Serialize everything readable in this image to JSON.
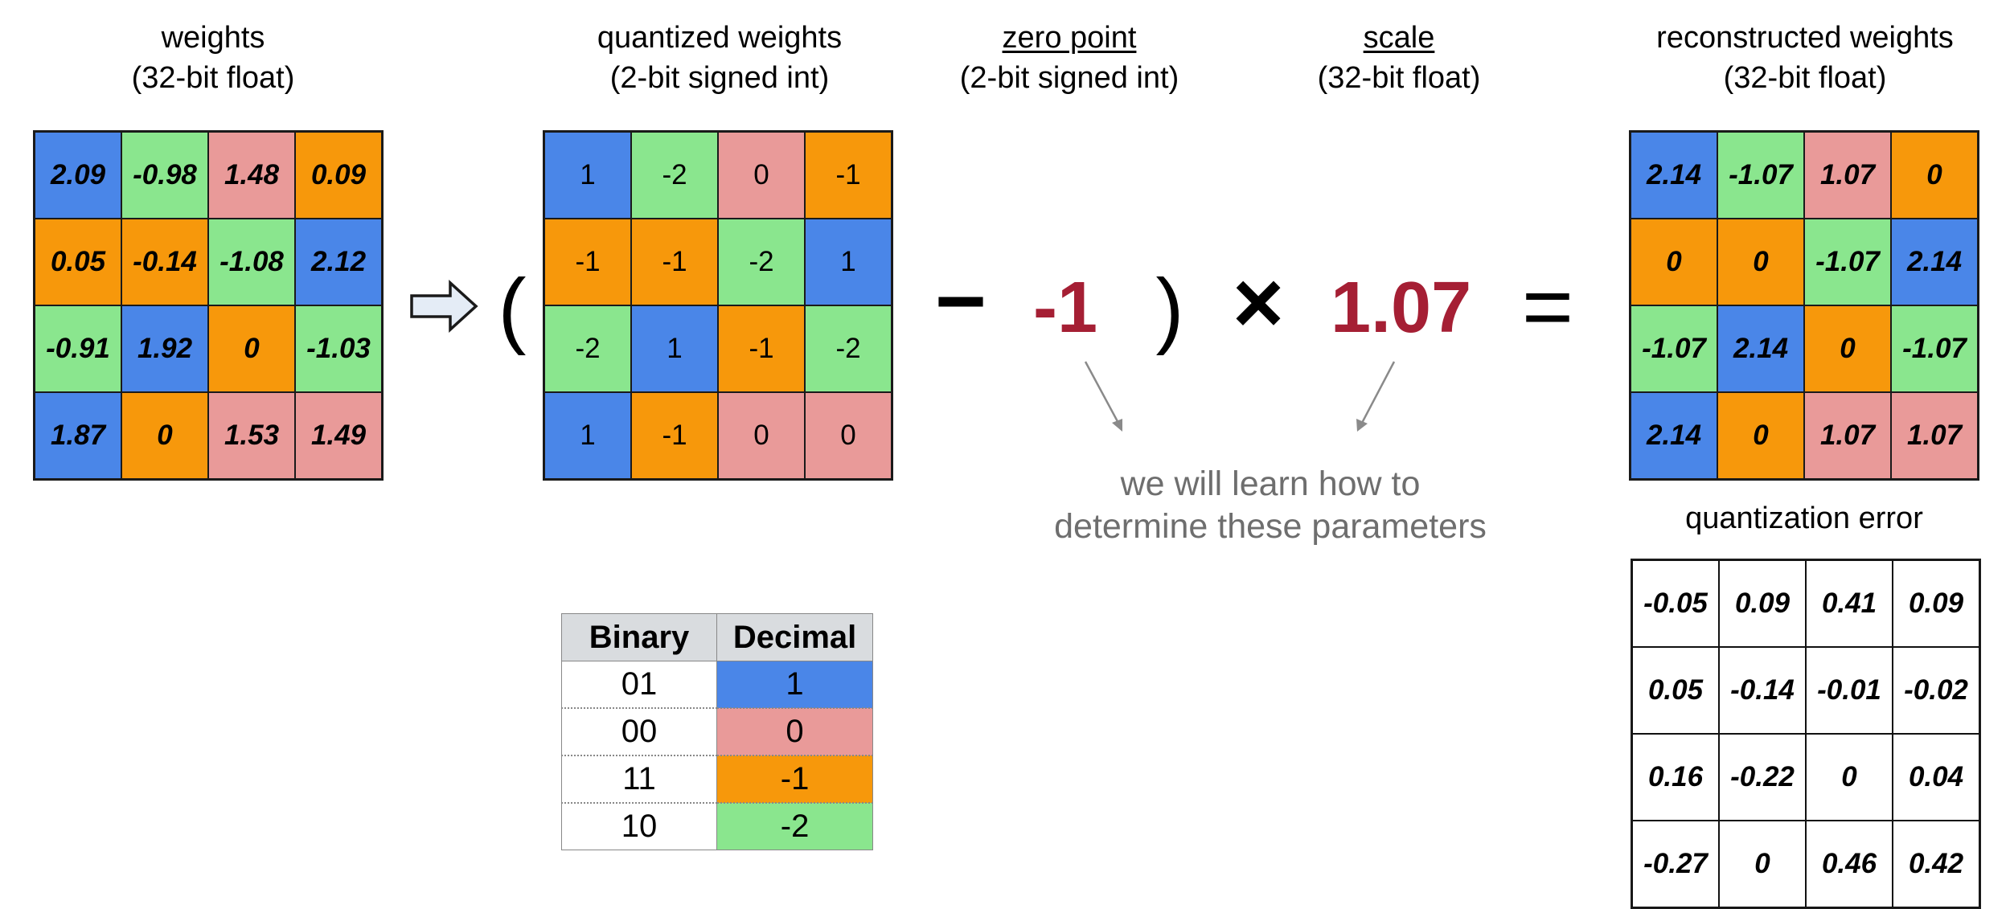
{
  "colors": {
    "blue": "#4a86e8",
    "green": "#8ae68e",
    "pink": "#e99a99",
    "orange": "#f7980b",
    "red_text": "#a51f34",
    "note_gray": "#6e6e6e",
    "arrow_fill": "#e4ecf6"
  },
  "weights": {
    "title_line1": "weights",
    "title_line2": "(32-bit float)",
    "cells": [
      [
        "2.09",
        "-0.98",
        "1.48",
        "0.09"
      ],
      [
        "0.05",
        "-0.14",
        "-1.08",
        "2.12"
      ],
      [
        "-0.91",
        "1.92",
        "0",
        "-1.03"
      ],
      [
        "1.87",
        "0",
        "1.53",
        "1.49"
      ]
    ],
    "cell_colors": [
      [
        "blue",
        "green",
        "pink",
        "orange"
      ],
      [
        "orange",
        "orange",
        "green",
        "blue"
      ],
      [
        "green",
        "blue",
        "orange",
        "green"
      ],
      [
        "blue",
        "orange",
        "pink",
        "pink"
      ]
    ]
  },
  "quantized": {
    "title_line1": "quantized weights",
    "title_line2": "(2-bit signed int)",
    "cells": [
      [
        "1",
        "-2",
        "0",
        "-1"
      ],
      [
        "-1",
        "-1",
        "-2",
        "1"
      ],
      [
        "-2",
        "1",
        "-1",
        "-2"
      ],
      [
        "1",
        "-1",
        "0",
        "0"
      ]
    ],
    "cell_colors": [
      [
        "blue",
        "green",
        "pink",
        "orange"
      ],
      [
        "orange",
        "orange",
        "green",
        "blue"
      ],
      [
        "green",
        "blue",
        "orange",
        "green"
      ],
      [
        "blue",
        "orange",
        "pink",
        "pink"
      ]
    ]
  },
  "zero_point": {
    "title_line1": "zero point",
    "title_line2": "(2-bit signed int)",
    "value": "-1"
  },
  "scale": {
    "title_line1": "scale",
    "title_line2": "(32-bit float)",
    "value": "1.07"
  },
  "reconstructed": {
    "title_line1": "reconstructed weights",
    "title_line2": "(32-bit float)",
    "cells": [
      [
        "2.14",
        "-1.07",
        "1.07",
        "0"
      ],
      [
        "0",
        "0",
        "-1.07",
        "2.14"
      ],
      [
        "-1.07",
        "2.14",
        "0",
        "-1.07"
      ],
      [
        "2.14",
        "0",
        "1.07",
        "1.07"
      ]
    ],
    "cell_colors": [
      [
        "blue",
        "green",
        "pink",
        "orange"
      ],
      [
        "orange",
        "orange",
        "green",
        "blue"
      ],
      [
        "green",
        "blue",
        "orange",
        "green"
      ],
      [
        "blue",
        "orange",
        "pink",
        "pink"
      ]
    ]
  },
  "error": {
    "title": "quantization error",
    "cells": [
      [
        "-0.05",
        "0.09",
        "0.41",
        "0.09"
      ],
      [
        "0.05",
        "-0.14",
        "-0.01",
        "-0.02"
      ],
      [
        "0.16",
        "-0.22",
        "0",
        "0.04"
      ],
      [
        "-0.27",
        "0",
        "0.46",
        "0.42"
      ]
    ]
  },
  "symbols": {
    "open_paren": "(",
    "close_paren": ")",
    "minus": "−",
    "times": "×",
    "equals": "="
  },
  "note": {
    "line1": "we will learn how to",
    "line2": "determine these parameters"
  },
  "binary_table": {
    "headers": [
      "Binary",
      "Decimal"
    ],
    "rows": [
      {
        "binary": "01",
        "decimal": "1",
        "color": "blue"
      },
      {
        "binary": "00",
        "decimal": "0",
        "color": "pink"
      },
      {
        "binary": "11",
        "decimal": "-1",
        "color": "orange"
      },
      {
        "binary": "10",
        "decimal": "-2",
        "color": "green"
      }
    ]
  }
}
